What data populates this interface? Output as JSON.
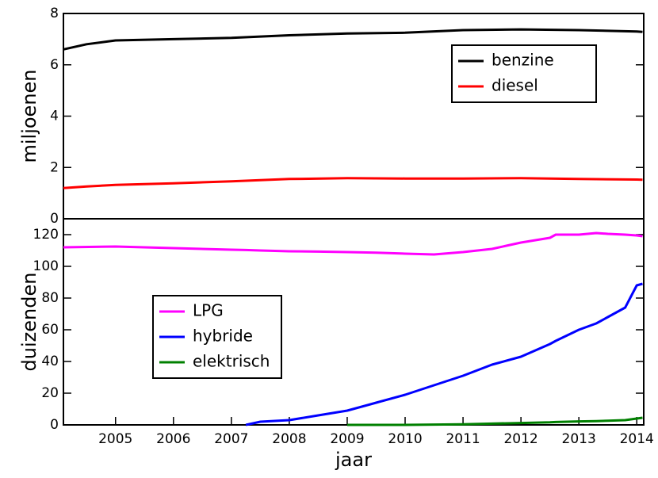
{
  "chart_data": [
    {
      "type": "line",
      "ylabel": "miljoenen",
      "x": [
        2004.1,
        2004.5,
        2005,
        2006,
        2007,
        2008,
        2009,
        2010,
        2011,
        2012,
        2013,
        2014,
        2014.1
      ],
      "series": [
        {
          "name": "benzine",
          "color": "#000000",
          "values": [
            6.6,
            6.8,
            6.95,
            7.0,
            7.05,
            7.15,
            7.22,
            7.25,
            7.35,
            7.38,
            7.35,
            7.3,
            7.28
          ]
        },
        {
          "name": "diesel",
          "color": "#ff0000",
          "values": [
            1.2,
            1.26,
            1.32,
            1.38,
            1.46,
            1.55,
            1.58,
            1.57,
            1.57,
            1.58,
            1.55,
            1.53,
            1.52
          ]
        }
      ],
      "xlim": [
        2004.1,
        2014.12
      ],
      "ylim": [
        0,
        8
      ],
      "yticks": [
        0,
        2,
        4,
        6,
        8
      ],
      "legend": "upper right"
    },
    {
      "type": "line",
      "ylabel": "duizenden",
      "xlabel": "jaar",
      "x": [
        2004.1,
        2005,
        2006,
        2007,
        2007.25,
        2007.5,
        2008,
        2008.5,
        2009,
        2009.5,
        2010,
        2010.5,
        2011,
        2011.5,
        2012,
        2012.5,
        2012.6,
        2013,
        2013.3,
        2013.5,
        2013.8,
        2014,
        2014.1
      ],
      "series": [
        {
          "name": "LPG",
          "color": "#ff00ff",
          "values": [
            112,
            112.5,
            111.5,
            110.5,
            110.3,
            110,
            109.5,
            109.3,
            109,
            108.6,
            108,
            107.5,
            109,
            111,
            115,
            118,
            120,
            120,
            121,
            120.5,
            120,
            119.5,
            119
          ]
        },
        {
          "name": "hybride",
          "color": "#0000ff",
          "values": [
            null,
            null,
            null,
            null,
            0,
            2,
            3,
            6,
            9,
            14,
            19,
            25,
            31,
            38,
            43,
            51,
            53,
            60,
            64,
            68,
            74,
            88,
            89
          ]
        },
        {
          "name": "elektrisch",
          "color": "#008000",
          "values": [
            null,
            null,
            null,
            null,
            null,
            null,
            null,
            null,
            0,
            0,
            0,
            0.2,
            0.4,
            0.8,
            1.2,
            1.6,
            1.8,
            2.2,
            2.4,
            2.6,
            3,
            4,
            4.5
          ]
        }
      ],
      "xlim": [
        2004.1,
        2014.12
      ],
      "xticks": [
        2005,
        2006,
        2007,
        2008,
        2009,
        2010,
        2011,
        2012,
        2013,
        2014
      ],
      "ylim": [
        0,
        130
      ],
      "yticks": [
        0,
        20,
        40,
        60,
        80,
        100,
        120
      ],
      "legend": "center left"
    }
  ]
}
